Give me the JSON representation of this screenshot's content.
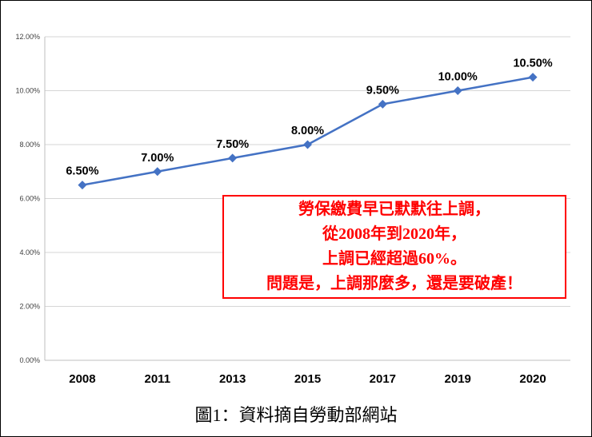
{
  "caption": "圖1：資料摘自勞動部網站",
  "annotation": {
    "lines": [
      "勞保繳費早已默默往上調，",
      "從2008年到2020年，",
      "上調已經超過60%。",
      "問題是，上調那麼多，還是要破產！"
    ],
    "text_color": "#FF0000",
    "border_color": "#FF0000"
  },
  "chart_data": {
    "type": "line",
    "categories": [
      "2008",
      "2011",
      "2013",
      "2015",
      "2017",
      "2019",
      "2020"
    ],
    "values": [
      6.5,
      7.0,
      7.5,
      8.0,
      9.5,
      10.0,
      10.5
    ],
    "data_labels": [
      "6.50%",
      "7.00%",
      "7.50%",
      "8.00%",
      "9.50%",
      "10.00%",
      "10.50%"
    ],
    "y_ticks": [
      "0.00%",
      "2.00%",
      "4.00%",
      "6.00%",
      "8.00%",
      "10.00%",
      "12.00%"
    ],
    "ylim": [
      0,
      12
    ],
    "y_tick_step": 2,
    "title": "",
    "xlabel": "",
    "ylabel": "",
    "legend": "none",
    "grid": true,
    "line_color": "#4472C4",
    "marker": "diamond",
    "grid_color": "#D6D6D6",
    "axis_color": "#BFBFBF",
    "tick_label_color": "#404040",
    "data_label_color": "#000000"
  }
}
